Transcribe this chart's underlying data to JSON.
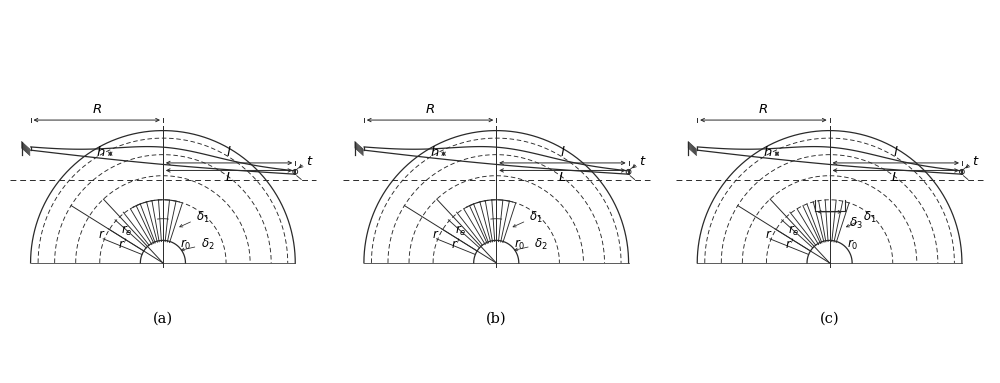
{
  "bg_color": "#ffffff",
  "line_color": "#2a2a2a",
  "fig_width": 10.0,
  "fig_height": 3.83,
  "panels": [
    "a",
    "b",
    "c"
  ]
}
